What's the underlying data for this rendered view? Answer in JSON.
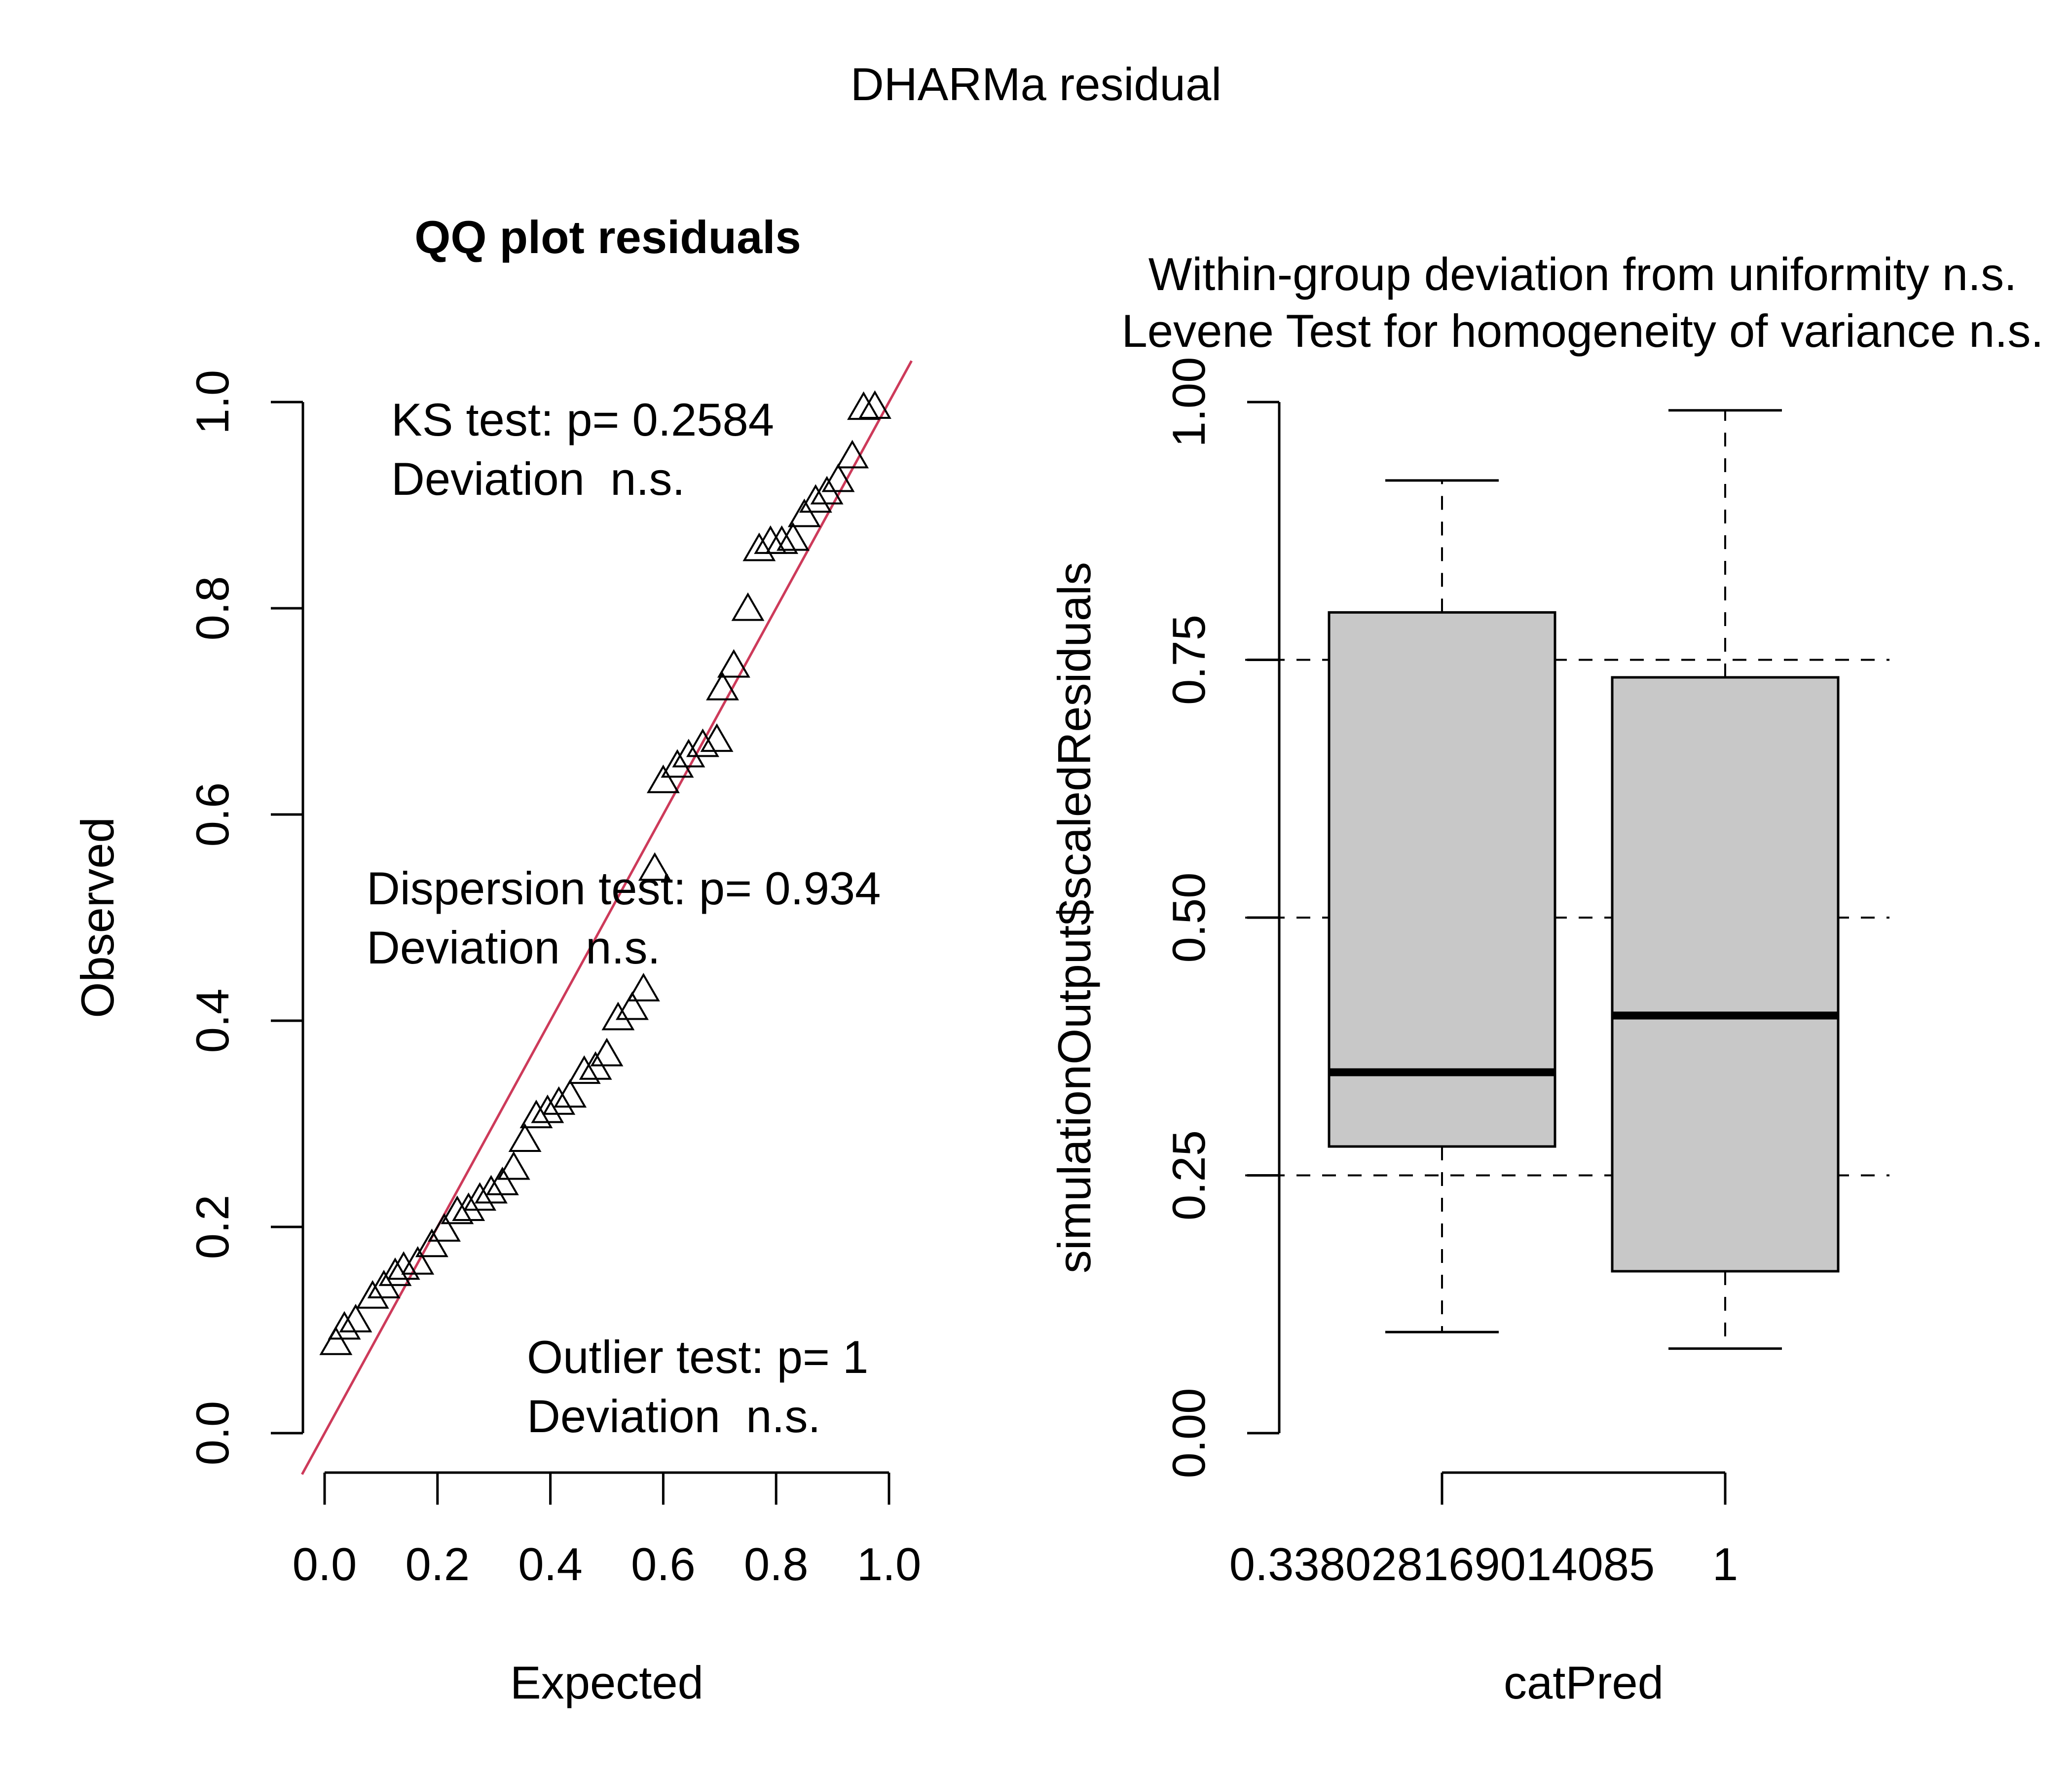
{
  "page": {
    "title": "DHARMa residual"
  },
  "chart_data": [
    {
      "type": "scatter",
      "title": "QQ plot residuals",
      "xlabel": "Expected",
      "ylabel": "Observed",
      "xlim": [
        0,
        1
      ],
      "ylim": [
        0,
        1
      ],
      "x_ticks": [
        "0.0",
        "0.2",
        "0.4",
        "0.6",
        "0.8",
        "1.0"
      ],
      "y_ticks": [
        "0.0",
        "0.2",
        "0.4",
        "0.6",
        "0.8",
        "1.0"
      ],
      "grid": false,
      "point_shape": "triangle",
      "reference_line": {
        "from": [
          0,
          0
        ],
        "to": [
          1,
          1
        ],
        "color": "#cd3a5a"
      },
      "annotations": {
        "ks": {
          "test": "KS test: p= 0.2584",
          "deviation": "Deviation  n.s."
        },
        "dispersion": {
          "test": "Dispersion test: p= 0.934",
          "deviation": "Deviation  n.s."
        },
        "outlier": {
          "test": "Outlier test: p= 1",
          "deviation": "Deviation  n.s."
        }
      },
      "points": [
        [
          0.02,
          0.085
        ],
        [
          0.035,
          0.1
        ],
        [
          0.055,
          0.107
        ],
        [
          0.085,
          0.13
        ],
        [
          0.105,
          0.14
        ],
        [
          0.125,
          0.152
        ],
        [
          0.14,
          0.158
        ],
        [
          0.165,
          0.163
        ],
        [
          0.19,
          0.18
        ],
        [
          0.212,
          0.195
        ],
        [
          0.235,
          0.212
        ],
        [
          0.255,
          0.215
        ],
        [
          0.275,
          0.225
        ],
        [
          0.295,
          0.232
        ],
        [
          0.315,
          0.24
        ],
        [
          0.335,
          0.255
        ],
        [
          0.355,
          0.282
        ],
        [
          0.375,
          0.305
        ],
        [
          0.395,
          0.31
        ],
        [
          0.415,
          0.318
        ],
        [
          0.435,
          0.325
        ],
        [
          0.46,
          0.348
        ],
        [
          0.48,
          0.352
        ],
        [
          0.5,
          0.365
        ],
        [
          0.52,
          0.4
        ],
        [
          0.545,
          0.41
        ],
        [
          0.565,
          0.428
        ],
        [
          0.585,
          0.545
        ],
        [
          0.6,
          0.63
        ],
        [
          0.625,
          0.645
        ],
        [
          0.645,
          0.655
        ],
        [
          0.67,
          0.665
        ],
        [
          0.695,
          0.67
        ],
        [
          0.705,
          0.72
        ],
        [
          0.725,
          0.742
        ],
        [
          0.75,
          0.797
        ],
        [
          0.77,
          0.855
        ],
        [
          0.79,
          0.862
        ],
        [
          0.81,
          0.862
        ],
        [
          0.83,
          0.865
        ],
        [
          0.85,
          0.888
        ],
        [
          0.87,
          0.902
        ],
        [
          0.89,
          0.91
        ],
        [
          0.91,
          0.922
        ],
        [
          0.935,
          0.945
        ],
        [
          0.955,
          0.992
        ],
        [
          0.975,
          0.993
        ]
      ]
    },
    {
      "type": "box",
      "title_lines": [
        "Within-group deviation from uniformity n.s.",
        "Levene Test for homogeneity of variance n.s."
      ],
      "xlabel": "catPred",
      "ylabel": "simulationOutput$scaledResiduals",
      "ylim": [
        0,
        1
      ],
      "y_ticks": [
        "0.00",
        "0.25",
        "0.50",
        "0.75",
        "1.00"
      ],
      "reference_lines": [
        0.25,
        0.5,
        0.75
      ],
      "categories": [
        "0.338028169014085",
        "1"
      ],
      "boxes": [
        {
          "category": "0.338028169014085",
          "whisker_low": 0.098,
          "q1": 0.278,
          "median": 0.35,
          "q3": 0.796,
          "whisker_high": 0.924,
          "fill": "#c8c8c8"
        },
        {
          "category": "1",
          "whisker_low": 0.082,
          "q1": 0.157,
          "median": 0.405,
          "q3": 0.733,
          "whisker_high": 0.992,
          "fill": "#c8c8c8"
        }
      ]
    }
  ]
}
